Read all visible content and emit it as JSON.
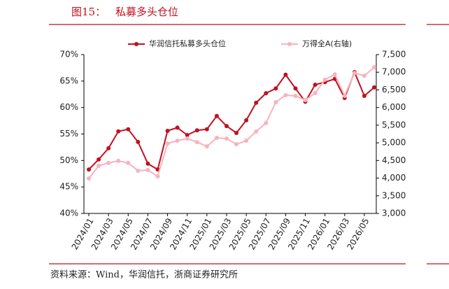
{
  "chart_data": {
    "type": "line",
    "figure_label": "图15：",
    "title": "私募多头仓位",
    "source": "资料来源：Wind，华润信托，浙商证券研究所",
    "categories": [
      "2024/01",
      null,
      "2024/03",
      null,
      "2024/05",
      null,
      "2024/07",
      null,
      "2024/09",
      null,
      "2024/11",
      null,
      "2025/01",
      null,
      "2025/03",
      null,
      "2025/05",
      null,
      "2025/07",
      null,
      "2025/09",
      null,
      "2025/11",
      null,
      "2026/01",
      null,
      "2026/03",
      null,
      "2026/05",
      null
    ],
    "series": [
      {
        "name": "华润信托私募多头仓位",
        "color": "#c0111f",
        "values": [
          48.3,
          50.2,
          52.3,
          55.5,
          55.9,
          53.5,
          49.4,
          48.3,
          55.6,
          56.2,
          54.8,
          55.7,
          55.9,
          58.4,
          56.5,
          55.2,
          57.6,
          60.9,
          62.7,
          63.6,
          66.2,
          63.6,
          61.1,
          64.3,
          64.8,
          65.4,
          61.8,
          66.7,
          62.2,
          63.8
        ]
      },
      {
        "name": "万得全A(右轴)",
        "color": "#f7b3be",
        "axis": "y2",
        "values": [
          3990,
          4350,
          4430,
          4490,
          4430,
          4210,
          4230,
          4050,
          4980,
          5060,
          5120,
          5020,
          4900,
          5140,
          5120,
          4960,
          5060,
          5320,
          5560,
          6150,
          6350,
          6330,
          6210,
          6410,
          6790,
          6940,
          6330,
          6980,
          6900,
          7140
        ]
      }
    ],
    "ylim": [
      40,
      70
    ],
    "yticks": [
      {
        "value": 40,
        "label": "40%"
      },
      {
        "value": 45,
        "label": "45%"
      },
      {
        "value": 50,
        "label": "50%"
      },
      {
        "value": 55,
        "label": "55%"
      },
      {
        "value": 60,
        "label": "60%"
      },
      {
        "value": 65,
        "label": "65%"
      },
      {
        "value": 70,
        "label": "70%"
      }
    ],
    "y2lim": [
      3000,
      7500
    ],
    "y2ticks": [
      {
        "value": 3000,
        "label": "3,000"
      },
      {
        "value": 3500,
        "label": "3,500"
      },
      {
        "value": 4000,
        "label": "4,000"
      },
      {
        "value": 4500,
        "label": "4,500"
      },
      {
        "value": 5000,
        "label": "5,000"
      },
      {
        "value": 5500,
        "label": "5,500"
      },
      {
        "value": 6000,
        "label": "6,000"
      },
      {
        "value": 6500,
        "label": "6,500"
      },
      {
        "value": 7000,
        "label": "7,000"
      },
      {
        "value": 7500,
        "label": "7,500"
      }
    ],
    "legend": "top"
  }
}
